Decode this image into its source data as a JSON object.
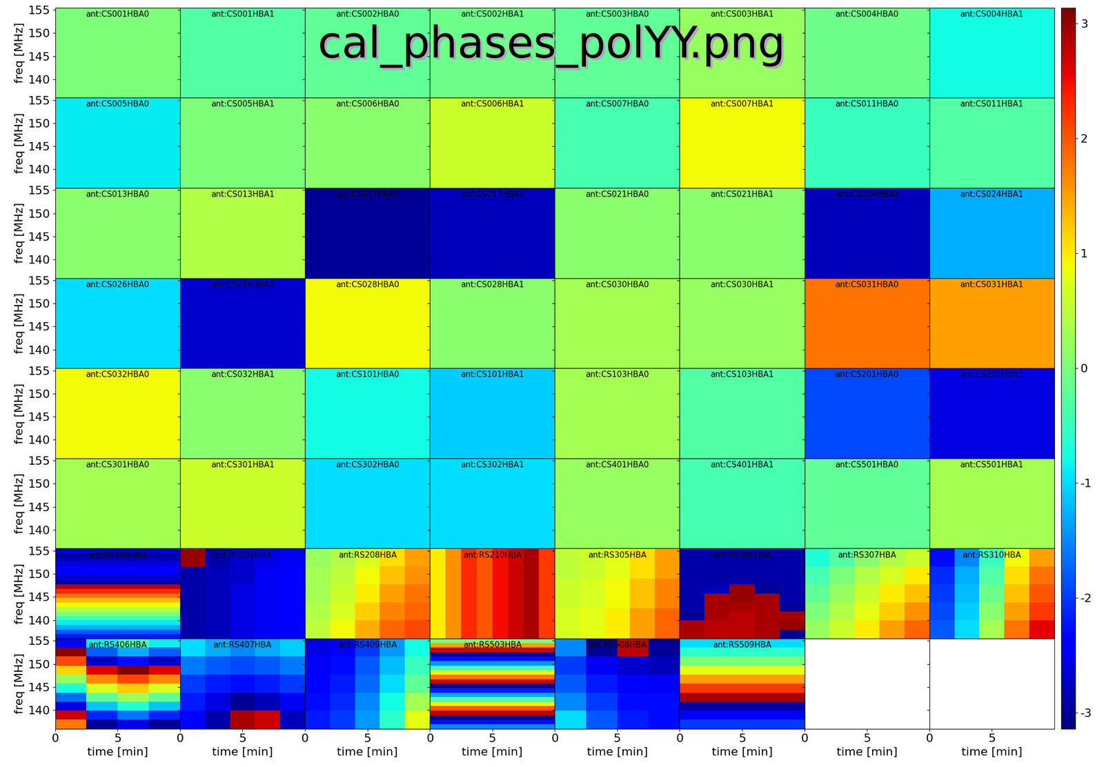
{
  "chart_data": {
    "type": "heatmap",
    "title": "cal_phases_polYY.png",
    "xlabel": "time [min]",
    "ylabel": "freq [MHz]",
    "xlim": [
      0,
      10
    ],
    "xticks": [
      0,
      5
    ],
    "ylim": [
      136,
      155.5
    ],
    "yticks": [
      140,
      145,
      150,
      155
    ],
    "colorbar": {
      "range": [
        -3.14,
        3.14
      ],
      "ticks": [
        -3,
        -2,
        -1,
        0,
        1,
        2,
        3
      ]
    },
    "panels": [
      {
        "name": "ant:CS001HBA0",
        "cells": [
          [
            0.0
          ]
        ]
      },
      {
        "name": "ant:CS001HBA1",
        "cells": [
          [
            -0.3
          ]
        ]
      },
      {
        "name": "ant:CS002HBA0",
        "cells": [
          [
            -0.2
          ]
        ]
      },
      {
        "name": "ant:CS002HBA1",
        "cells": [
          [
            -0.1
          ]
        ]
      },
      {
        "name": "ant:CS003HBA0",
        "cells": [
          [
            -0.2
          ]
        ]
      },
      {
        "name": "ant:CS003HBA1",
        "cells": [
          [
            0.2
          ]
        ]
      },
      {
        "name": "ant:CS004HBA0",
        "cells": [
          [
            -0.1
          ]
        ]
      },
      {
        "name": "ant:CS004HBA1",
        "cells": [
          [
            -0.8
          ]
        ]
      },
      {
        "name": "ant:CS005HBA0",
        "cells": [
          [
            -0.9
          ]
        ]
      },
      {
        "name": "ant:CS005HBA1",
        "cells": [
          [
            0.0
          ]
        ]
      },
      {
        "name": "ant:CS006HBA0",
        "cells": [
          [
            0.1
          ]
        ]
      },
      {
        "name": "ant:CS006HBA1",
        "cells": [
          [
            0.6
          ]
        ]
      },
      {
        "name": "ant:CS007HBA0",
        "cells": [
          [
            -0.4
          ]
        ]
      },
      {
        "name": "ant:CS007HBA1",
        "cells": [
          [
            0.9
          ]
        ]
      },
      {
        "name": "ant:CS011HBA0",
        "cells": [
          [
            -0.5
          ]
        ]
      },
      {
        "name": "ant:CS011HBA1",
        "cells": [
          [
            -0.3
          ]
        ]
      },
      {
        "name": "ant:CS013HBA0",
        "cells": [
          [
            0.1
          ]
        ]
      },
      {
        "name": "ant:CS013HBA1",
        "cells": [
          [
            0.4
          ]
        ]
      },
      {
        "name": "ant:CS017HBA0",
        "cells": [
          [
            -3.0
          ]
        ]
      },
      {
        "name": "ant:CS017HBA1",
        "cells": [
          [
            -2.8
          ]
        ]
      },
      {
        "name": "ant:CS021HBA0",
        "cells": [
          [
            0.1
          ]
        ]
      },
      {
        "name": "ant:CS021HBA1",
        "cells": [
          [
            0.1
          ]
        ]
      },
      {
        "name": "ant:CS024HBA0",
        "cells": [
          [
            -2.8
          ]
        ]
      },
      {
        "name": "ant:CS024HBA1",
        "cells": [
          [
            -1.3
          ]
        ]
      },
      {
        "name": "ant:CS026HBA0",
        "cells": [
          [
            -1.0
          ]
        ]
      },
      {
        "name": "ant:CS026HBA1",
        "cells": [
          [
            -2.7
          ]
        ]
      },
      {
        "name": "ant:CS028HBA0",
        "cells": [
          [
            0.9
          ]
        ]
      },
      {
        "name": "ant:CS028HBA1",
        "cells": [
          [
            0.1
          ]
        ]
      },
      {
        "name": "ant:CS030HBA0",
        "cells": [
          [
            0.3
          ]
        ]
      },
      {
        "name": "ant:CS030HBA1",
        "cells": [
          [
            0.2
          ]
        ]
      },
      {
        "name": "ant:CS031HBA0",
        "cells": [
          [
            1.8
          ]
        ]
      },
      {
        "name": "ant:CS031HBA1",
        "cells": [
          [
            1.5
          ]
        ]
      },
      {
        "name": "ant:CS032HBA0",
        "cells": [
          [
            0.9
          ]
        ]
      },
      {
        "name": "ant:CS032HBA1",
        "cells": [
          [
            0.1
          ]
        ]
      },
      {
        "name": "ant:CS101HBA0",
        "cells": [
          [
            -0.8
          ]
        ]
      },
      {
        "name": "ant:CS101HBA1",
        "cells": [
          [
            -1.1
          ]
        ]
      },
      {
        "name": "ant:CS103HBA0",
        "cells": [
          [
            0.3
          ]
        ]
      },
      {
        "name": "ant:CS103HBA1",
        "cells": [
          [
            -0.3
          ]
        ]
      },
      {
        "name": "ant:CS201HBA0",
        "cells": [
          [
            -1.9
          ]
        ]
      },
      {
        "name": "ant:CS201HBA1",
        "cells": [
          [
            -2.6
          ]
        ]
      },
      {
        "name": "ant:CS301HBA0",
        "cells": [
          [
            0.3
          ]
        ]
      },
      {
        "name": "ant:CS301HBA1",
        "cells": [
          [
            0.6
          ]
        ]
      },
      {
        "name": "ant:CS302HBA0",
        "cells": [
          [
            -1.0
          ]
        ]
      },
      {
        "name": "ant:CS302HBA1",
        "cells": [
          [
            -1.0
          ]
        ]
      },
      {
        "name": "ant:CS401HBA0",
        "cells": [
          [
            0.2
          ]
        ]
      },
      {
        "name": "ant:CS401HBA1",
        "cells": [
          [
            -0.4
          ]
        ]
      },
      {
        "name": "ant:CS501HBA0",
        "cells": [
          [
            -0.2
          ]
        ]
      },
      {
        "name": "ant:CS501HBA1",
        "cells": [
          [
            0.3
          ]
        ]
      },
      {
        "name": "ant:RS106HBA",
        "cells": [
          [
            -2.2
          ],
          [
            -1.8
          ],
          [
            -1.3
          ],
          [
            -0.9
          ],
          [
            -0.5
          ],
          [
            0.0
          ],
          [
            0.4
          ],
          [
            0.9
          ],
          [
            1.3
          ],
          [
            1.8
          ],
          [
            2.3
          ],
          [
            2.8
          ],
          [
            -3.0
          ],
          [
            -2.7
          ],
          [
            -2.5
          ],
          [
            -2.4
          ],
          [
            -2.6
          ],
          [
            -2.8
          ],
          [
            -2.9
          ],
          [
            -2.7
          ]
        ]
      },
      {
        "name": "ant:RS205HBA",
        "cells": [
          [
            -2.9,
            -2.8,
            -2.6,
            -2.5,
            -2.4
          ],
          [
            -2.9,
            -2.8,
            -2.6,
            -2.5,
            -2.4
          ],
          [
            -2.9,
            -2.8,
            -2.6,
            -2.5,
            -2.4
          ],
          [
            -2.9,
            -2.8,
            -2.7,
            -2.5,
            -2.4
          ],
          [
            3.0,
            -2.9,
            -2.7,
            -2.6,
            -2.5
          ]
        ]
      },
      {
        "name": "ant:RS208HBA",
        "cells": [
          [
            0.5,
            0.9,
            1.4,
            1.9,
            2.1
          ],
          [
            0.4,
            0.7,
            1.2,
            1.7,
            1.9
          ],
          [
            0.3,
            0.6,
            1.0,
            1.5,
            1.8
          ],
          [
            0.3,
            0.5,
            0.9,
            1.3,
            1.6
          ],
          [
            0.2,
            0.4,
            0.7,
            1.1,
            1.5
          ]
        ]
      },
      {
        "name": "ant:RS210HBA",
        "cells": [
          [
            1.0,
            1.6,
            2.3,
            2.0,
            2.5,
            2.7,
            2.9,
            2.2
          ]
        ]
      },
      {
        "name": "ant:RS305HBA",
        "cells": [
          [
            0.7,
            0.8,
            1.0,
            1.5,
            1.9
          ],
          [
            0.6,
            0.7,
            0.9,
            1.3,
            1.7
          ],
          [
            0.5,
            0.6,
            0.8,
            1.1,
            1.5
          ]
        ]
      },
      {
        "name": "ant:RS306HBA",
        "cells": [
          [
            2.9,
            2.8,
            2.8,
            2.9,
            -3.0
          ],
          [
            2.9,
            2.8,
            2.8,
            2.9,
            3.0
          ],
          [
            -3.0,
            2.9,
            2.8,
            2.9,
            2.9
          ],
          [
            -2.9,
            2.9,
            2.9,
            2.9,
            -3.0
          ],
          [
            -2.9,
            2.9,
            3.0,
            2.9,
            -2.9
          ],
          [
            -2.9,
            -2.8,
            3.0,
            -3.0,
            -2.9
          ],
          [
            -2.9,
            -2.9,
            -2.9,
            -2.9,
            -2.9
          ],
          [
            -2.9,
            -2.9,
            -2.9,
            -2.9,
            -2.9
          ],
          [
            -2.9,
            -2.9,
            -2.9,
            -2.9,
            -2.9
          ],
          [
            -2.9,
            -2.9,
            -2.9,
            -2.9,
            -2.9
          ]
        ]
      },
      {
        "name": "ant:RS307HBA",
        "cells": [
          [
            0.2,
            0.6,
            1.0,
            1.5,
            1.9
          ],
          [
            0.0,
            0.4,
            0.8,
            1.2,
            1.6
          ],
          [
            -0.2,
            0.2,
            0.6,
            1.0,
            1.3
          ],
          [
            -0.4,
            0.0,
            0.4,
            0.7,
            1.0
          ],
          [
            -0.7,
            -0.3,
            0.1,
            0.4,
            0.6
          ]
        ]
      },
      {
        "name": "ant:RS310HBA",
        "cells": [
          [
            -1.8,
            -1.0,
            0.3,
            1.8,
            2.6
          ],
          [
            -1.9,
            -1.1,
            0.1,
            1.5,
            2.2
          ],
          [
            -2.0,
            -1.2,
            -0.1,
            1.3,
            2.0
          ],
          [
            -2.1,
            -1.3,
            -0.3,
            1.1,
            1.8
          ],
          [
            -2.3,
            -1.5,
            -0.5,
            0.9,
            1.5
          ]
        ]
      },
      {
        "name": "ant:RS406HBA",
        "cells": [
          [
            1.79,
            -3.04,
            -2.55,
            -3.04
          ],
          [
            2.71,
            -2.12,
            -1.64,
            -2.12
          ],
          [
            -2.6,
            -1.15,
            -0.67,
            -1.15
          ],
          [
            -1.69,
            -0.24,
            0.25,
            -0.24
          ],
          [
            -0.72,
            0.73,
            1.21,
            0.73
          ],
          [
            0.2,
            1.65,
            2.13,
            1.65
          ],
          [
            1.16,
            2.61,
            3.1,
            2.61
          ],
          [
            2.08,
            -2.75,
            -2.27,
            -2.75
          ],
          [
            3.05,
            -1.78,
            -1.3,
            -1.78
          ],
          [
            -2.31,
            -0.86,
            -0.38,
            -0.86
          ]
        ]
      },
      {
        "name": "ant:RS407HBA",
        "cells": [
          [
            -2.4,
            -2.9,
            2.9,
            2.7,
            -2.8
          ],
          [
            -2.2,
            -2.6,
            -3.0,
            -2.8,
            -2.5
          ],
          [
            -2.0,
            -2.2,
            -2.3,
            -2.2,
            -2.0
          ],
          [
            -1.6,
            -1.8,
            -1.9,
            -1.8,
            -1.6
          ],
          [
            -1.0,
            -1.3,
            -1.5,
            -1.3,
            -1.1
          ]
        ]
      },
      {
        "name": "ant:RS409HBA",
        "cells": [
          [
            -2.2,
            -2.0,
            -1.4,
            -0.6,
            0.8
          ],
          [
            -2.3,
            -2.1,
            -1.5,
            -0.8,
            0.3
          ],
          [
            -2.4,
            -2.2,
            -1.7,
            -1.0,
            -0.2
          ],
          [
            -2.5,
            -2.3,
            -1.8,
            -1.2,
            -0.5
          ],
          [
            -2.6,
            -2.4,
            -2.0,
            -1.4,
            -0.8
          ]
        ]
      },
      {
        "name": "ant:RS503HBA",
        "cells": [
          [
            -1.5
          ],
          [
            -2.3
          ],
          [
            -3.0
          ],
          [
            2.8
          ],
          [
            2.0
          ],
          [
            1.0
          ],
          [
            -0.3
          ],
          [
            -1.3
          ],
          [
            -2.2
          ],
          [
            -3.0
          ],
          [
            2.7
          ],
          [
            1.8
          ],
          [
            0.8
          ],
          [
            -0.4
          ],
          [
            -1.4
          ],
          [
            -2.3
          ],
          [
            -3.0
          ],
          [
            2.7
          ],
          [
            1.5
          ],
          [
            0.0
          ]
        ]
      },
      {
        "name": "ant:RS508HBA",
        "cells": [
          [
            -1.0,
            -1.8,
            -2.2,
            -2.3
          ],
          [
            -1.5,
            -2.0,
            -2.3,
            -2.3
          ],
          [
            -1.8,
            -2.2,
            -2.4,
            -2.5
          ],
          [
            -2.0,
            -2.5,
            -2.7,
            -2.8
          ],
          [
            -1.5,
            -3.0,
            2.8,
            -3.0
          ]
        ]
      },
      {
        "name": "ant:RS509HBA",
        "cells": [
          [
            -2.0
          ],
          [
            -2.4
          ],
          [
            -2.9
          ],
          [
            2.9
          ],
          [
            2.2
          ],
          [
            1.5
          ],
          [
            0.8
          ],
          [
            0.0
          ],
          [
            -0.6
          ],
          [
            -1.0
          ]
        ]
      }
    ]
  }
}
